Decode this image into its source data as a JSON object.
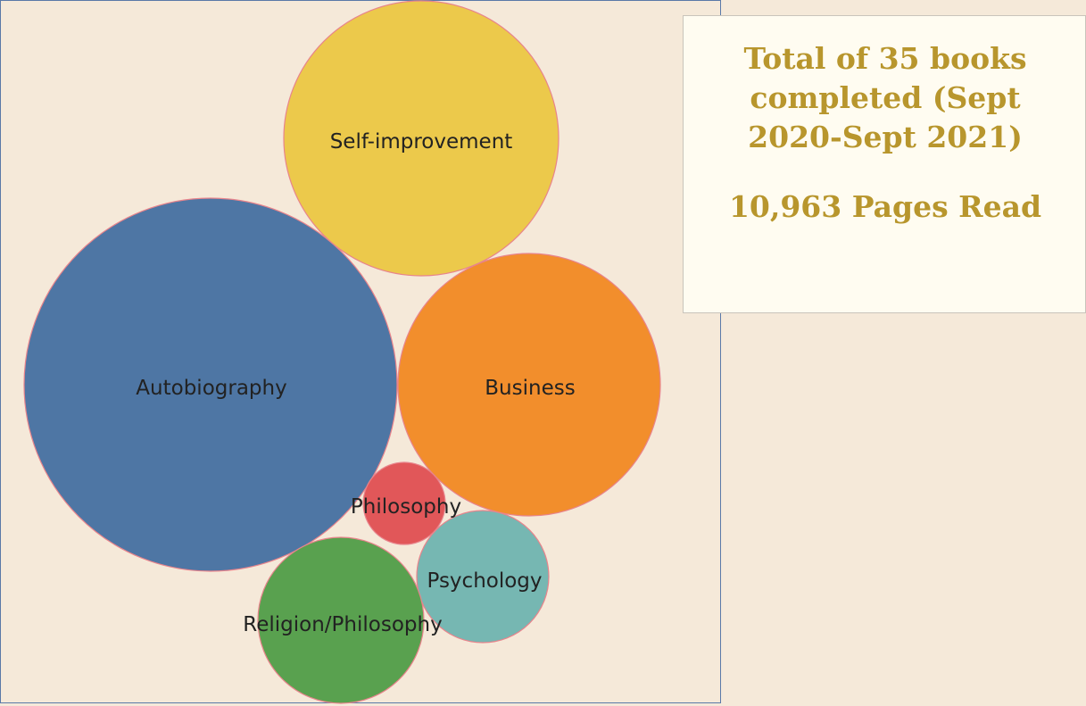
{
  "summary": {
    "title_lines": [
      "Total of 35 books",
      "completed (Sept",
      "2020-Sept 2021)"
    ],
    "pages_read": "10,963 Pages Read",
    "text_color": "#b8962d"
  },
  "chart_data": {
    "type": "bubble",
    "title": "",
    "legend": "none",
    "bubbles": [
      {
        "label": "Self-improvement",
        "color": "#ecc94b"
      },
      {
        "label": "Autobiography",
        "color": "#4e76a4"
      },
      {
        "label": "Business",
        "color": "#f28e2c"
      },
      {
        "label": "Philosophy",
        "color": "#e15759"
      },
      {
        "label": "Psychology",
        "color": "#76b7b2"
      },
      {
        "label": "Religion/Philosophy",
        "color": "#59a14f"
      }
    ]
  }
}
